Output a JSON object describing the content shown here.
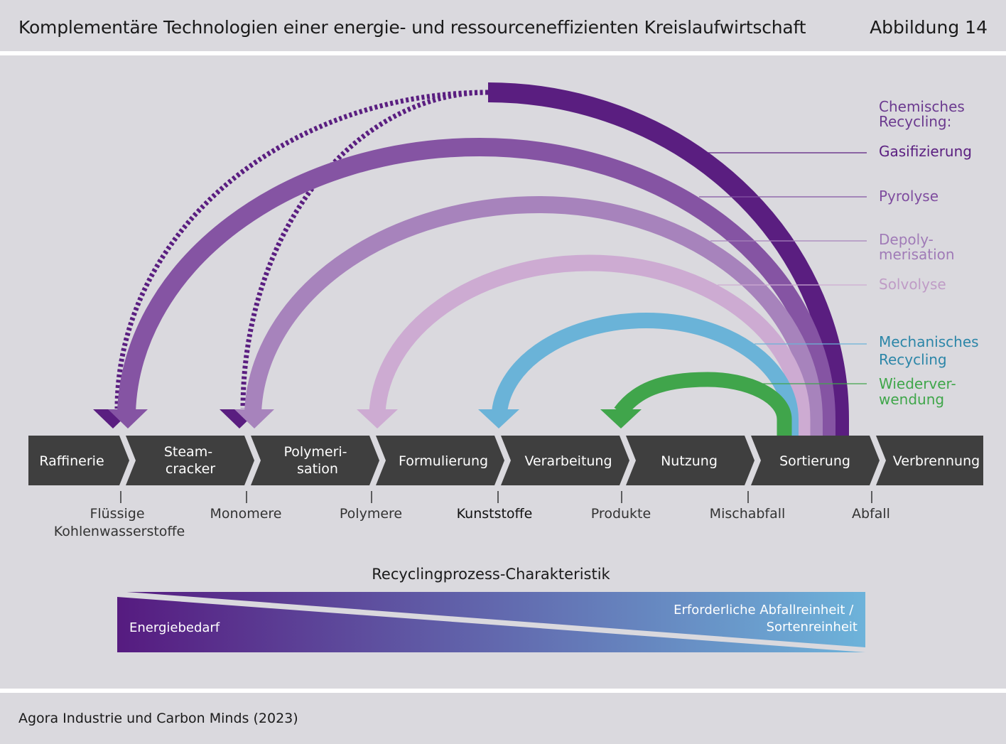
{
  "header": {
    "title": "Komplementäre Technologien einer energie- und ressourceneffizienten Kreislaufwirtschaft",
    "figure_label": "Abbildung 14"
  },
  "legend": {
    "group_label_line1": "Chemisches",
    "group_label_line2": "Recycling:",
    "items": [
      {
        "lines": [
          "Gasifizierung"
        ],
        "color": "#5a1e80"
      },
      {
        "lines": [
          "Pyrolyse"
        ],
        "color": "#7f4d9f"
      },
      {
        "lines": [
          "Depoly-",
          "merisation"
        ],
        "color": "#a07bb7"
      },
      {
        "lines": [
          "Solvolyse"
        ],
        "color": "#c8a6ce"
      },
      {
        "lines": [
          "Mechanisches",
          "Recycling"
        ],
        "color": "#2c86a8"
      },
      {
        "lines": [
          "Wiederver-",
          "wendung"
        ],
        "color": "#3fa64a"
      }
    ]
  },
  "process_steps": [
    {
      "lines": [
        "Raffinerie"
      ]
    },
    {
      "lines": [
        "Steam-",
        "cracker"
      ]
    },
    {
      "lines": [
        "Polymeri-",
        "sation"
      ]
    },
    {
      "lines": [
        "Formulierung"
      ]
    },
    {
      "lines": [
        "Verarbeitung"
      ]
    },
    {
      "lines": [
        "Nutzung"
      ]
    },
    {
      "lines": [
        "Sortierung"
      ]
    },
    {
      "lines": [
        "Verbrennung"
      ]
    }
  ],
  "intermediates": [
    {
      "lines": [
        "Flüssige",
        "Kohlenwasserstoffe"
      ]
    },
    {
      "lines": [
        "Monomere"
      ]
    },
    {
      "lines": [
        "Polymere"
      ]
    },
    {
      "lines": [
        "Kunststoffe"
      ]
    },
    {
      "lines": [
        "Produkte"
      ]
    },
    {
      "lines": [
        "Mischabfall"
      ]
    },
    {
      "lines": [
        "Abfall"
      ]
    }
  ],
  "characteristic": {
    "title": "Recyclingprozess-Charakteristik",
    "left_label": "Energiebedarf",
    "right_label_line1": "Erforderliche Abfallreinheit /",
    "right_label_line2": "Sortenreinheit",
    "gradient_start": "#561b80",
    "gradient_end": "#6db3da"
  },
  "colors": {
    "gasification": "#5a1e80",
    "pyrolysis": "#8554a3",
    "depolymerisation": "#a783bc",
    "solvolysis": "#cdabd2",
    "mechanical": "#6ab3d8",
    "reuse": "#40a54b",
    "arrow_bar": "#3f3f3f"
  },
  "footer": {
    "source": "Agora Industrie und Carbon Minds (2023)"
  }
}
